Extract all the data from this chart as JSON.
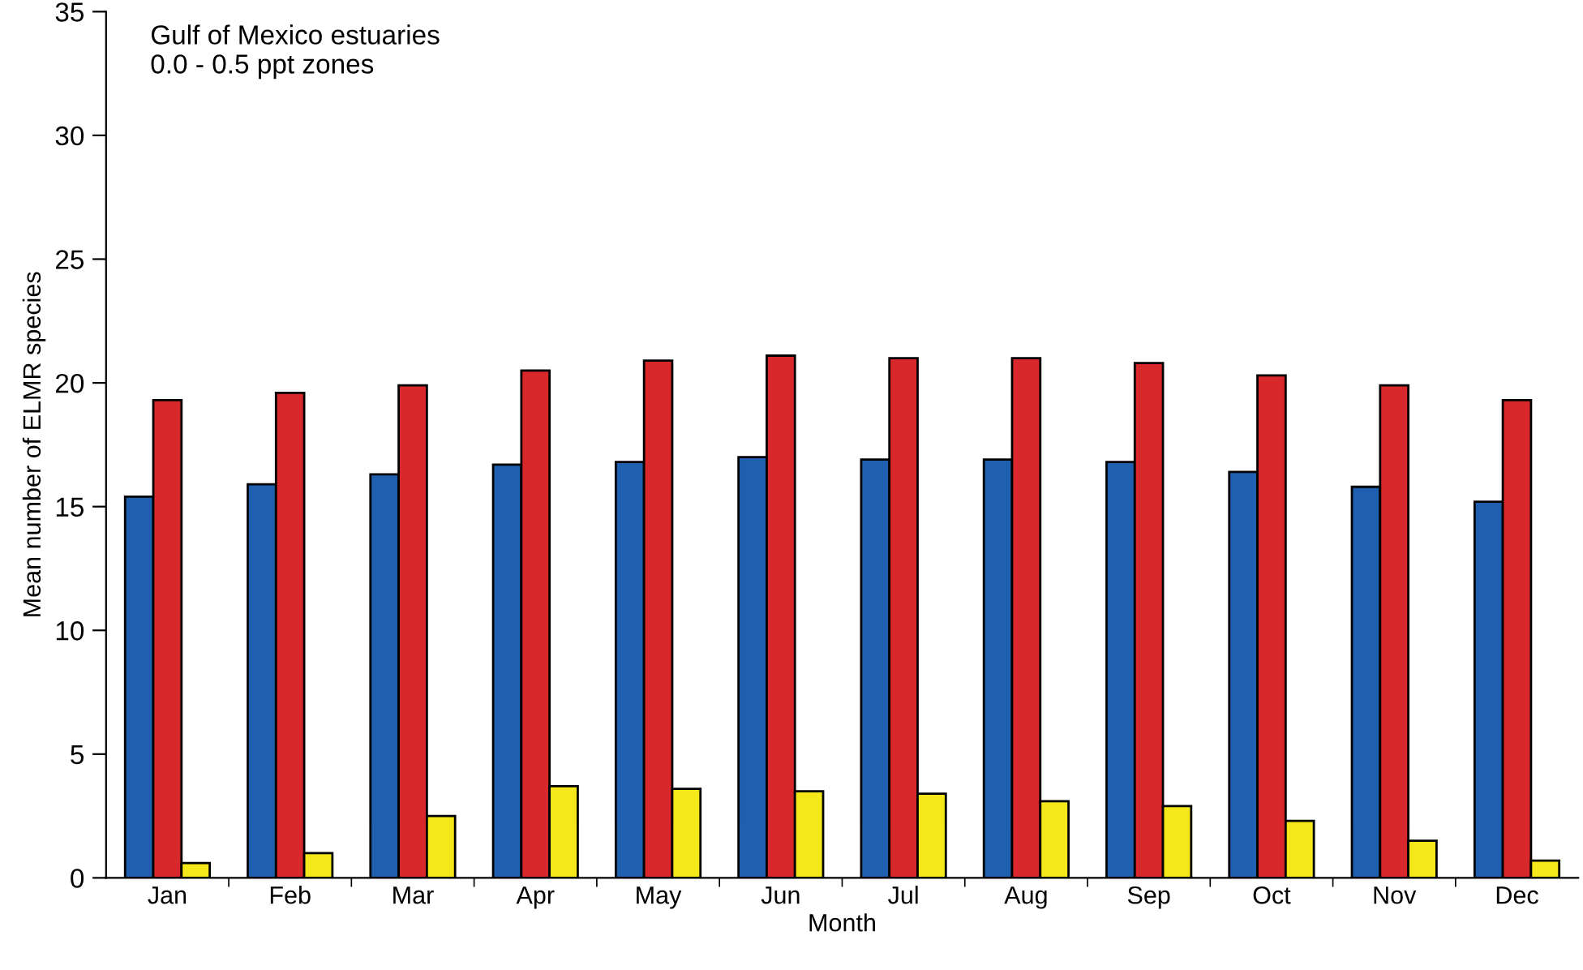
{
  "chart_data": {
    "type": "bar",
    "xlabel": "Month",
    "ylabel": "Mean number of ELMR species",
    "annotations": [
      "Gulf of Mexico estuaries\n0.0 - 0.5 ppt zones"
    ],
    "categories": [
      "Jan",
      "Feb",
      "Mar",
      "Apr",
      "May",
      "Jun",
      "Jul",
      "Aug",
      "Sep",
      "Oct",
      "Nov",
      "Dec"
    ],
    "series": [
      {
        "color": "#1f5fb0",
        "values": [
          15.4,
          15.9,
          16.3,
          16.7,
          16.8,
          17.0,
          16.9,
          16.9,
          16.8,
          16.4,
          15.8,
          15.2
        ]
      },
      {
        "color": "#d8282c",
        "values": [
          19.3,
          19.6,
          19.9,
          20.5,
          20.9,
          21.1,
          21.0,
          21.0,
          20.8,
          20.3,
          19.9,
          19.3
        ]
      },
      {
        "color": "#f5e81a",
        "values": [
          0.6,
          1.0,
          2.5,
          3.7,
          3.6,
          3.5,
          3.4,
          3.1,
          2.9,
          2.3,
          1.5,
          0.7
        ]
      }
    ],
    "ylim": [
      0,
      35
    ],
    "yticks": [
      0,
      5,
      10,
      15,
      20,
      25,
      30,
      35
    ],
    "grid": false,
    "legend": false
  }
}
